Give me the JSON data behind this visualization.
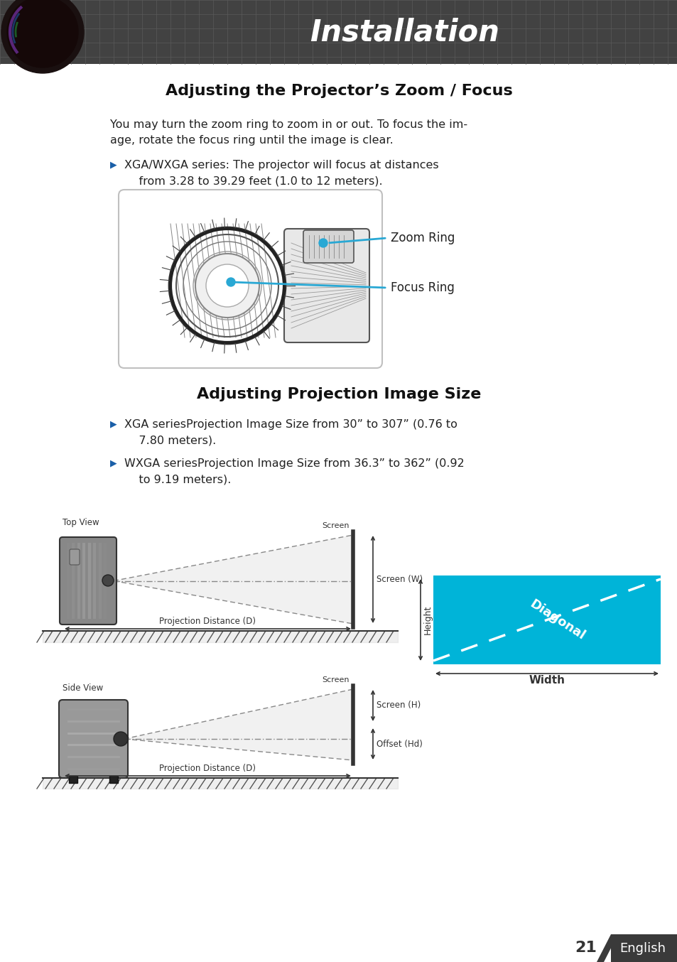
{
  "title": "Installation",
  "section1_title": "Adjusting the Projector’s Zoom / Focus",
  "section1_body": "You may turn the zoom ring to zoom in or out. To focus the im-\nage, rotate the focus ring until the image is clear.",
  "section1_bullet": "XGA/WXGA series: The projector will focus at distances\n    from 3.28 to 39.29 feet (1.0 to 12 meters).",
  "zoom_ring_label": "Zoom Ring",
  "focus_ring_label": "Focus Ring",
  "section2_title": "Adjusting Projection Image Size",
  "section2_bullet1": "XGA seriesProjection Image Size from 30” to 307” (0.76 to\n    7.80 meters).",
  "section2_bullet2": "WXGA seriesProjection Image Size from 36.3” to 362” (0.92\n    to 9.19 meters).",
  "top_view_label": "Top View",
  "side_view_label": "Side View",
  "screen_label": "Screen",
  "screen_w_label": "Screen (W)",
  "screen_h_label": "Screen (H)",
  "proj_dist_label": "Projection Distance (D)",
  "offset_label": "Offset (Hd)",
  "height_label": "Height",
  "diagonal_label": "Diagonal",
  "width_label": "Width",
  "page_number": "21",
  "page_lang": "English",
  "bg_color": "#ffffff",
  "header_dark": "#4a4a4a",
  "header_mid": "#5a5a5a",
  "body_color": "#222222",
  "bullet_arrow_color": "#1a5fa8",
  "cyan_line_color": "#29a8d4",
  "diagram_cyan": "#00b4d8",
  "footer_dark": "#3a3a3a"
}
